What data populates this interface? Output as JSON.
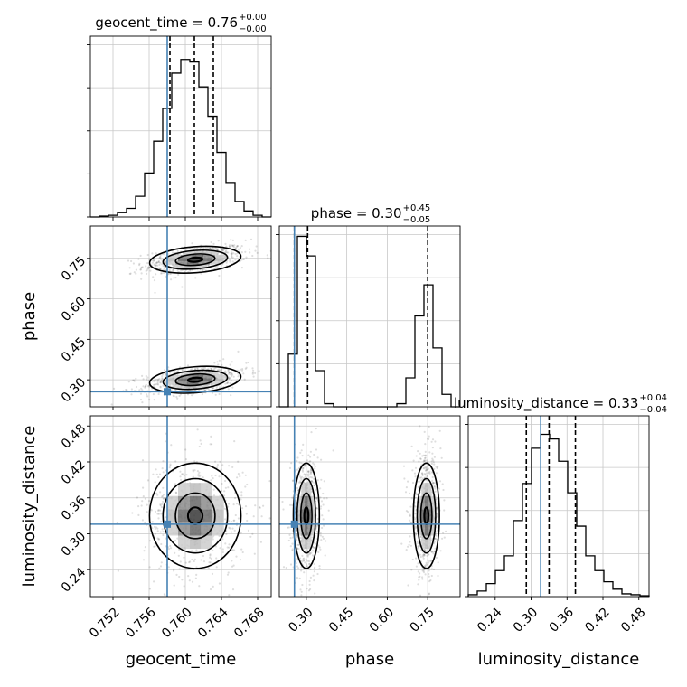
{
  "chart_data": {
    "type": "corner",
    "parameters": [
      "geocent_time",
      "phase",
      "luminosity_distance"
    ],
    "truth": {
      "geocent_time": 0.758,
      "phase": 0.256,
      "luminosity_distance": 0.316
    },
    "colors": {
      "truth": "#4682b4",
      "hist": "#000000",
      "grid": "#c8c8c8",
      "quantile": "#000000"
    },
    "grid": true,
    "titles": [
      {
        "label": "geocent_time = 0.76",
        "sup": "+0.00",
        "sub": "−0.00"
      },
      {
        "label": "phase = 0.30",
        "sup": "+0.45",
        "sub": "−0.05"
      },
      {
        "label": "luminosity_distance = 0.33",
        "sup": "+0.04",
        "sub": "−0.04"
      }
    ],
    "axis_labels": {
      "geocent_time": "geocent_time",
      "phase": "phase",
      "luminosity_distance": "luminosity_distance"
    },
    "ranges": {
      "geocent_time": [
        0.7495,
        0.7695
      ],
      "phase": [
        0.2,
        0.87
      ],
      "luminosity_distance": [
        0.195,
        0.497
      ]
    },
    "ticks": {
      "geocent_time": [
        0.752,
        0.756,
        0.76,
        0.764,
        0.768
      ],
      "phase": [
        0.3,
        0.45,
        0.6,
        0.75
      ],
      "luminosity_distance": [
        0.24,
        0.3,
        0.36,
        0.42,
        0.48
      ]
    },
    "tick_labels": {
      "geocent_time": [
        "0.752",
        "0.756",
        "0.760",
        "0.764",
        "0.768"
      ],
      "phase": [
        "0.30",
        "0.45",
        "0.60",
        "0.75"
      ],
      "luminosity_distance": [
        "0.24",
        "0.30",
        "0.36",
        "0.42",
        "0.48"
      ]
    },
    "quantiles": {
      "geocent_time": [
        0.7583,
        0.761,
        0.7631
      ],
      "phase": [
        0.256,
        0.305,
        0.75
      ],
      "luminosity_distance": [
        0.292,
        0.33,
        0.374
      ]
    },
    "hist_1d": {
      "geocent_time": {
        "edges": [
          0.7495,
          0.7505,
          0.7515,
          0.7525,
          0.7535,
          0.7545,
          0.7555,
          0.7565,
          0.7575,
          0.7585,
          0.7595,
          0.7605,
          0.7615,
          0.7625,
          0.7635,
          0.7645,
          0.7655,
          0.7665,
          0.7675,
          0.7685,
          0.7695
        ],
        "counts": [
          0,
          1,
          2,
          5,
          10,
          24,
          51,
          88,
          126,
          167,
          183,
          180,
          151,
          117,
          75,
          40,
          18,
          7,
          2,
          0
        ],
        "ymax": 210
      },
      "phase": {
        "edges": [
          0.2,
          0.2335,
          0.267,
          0.3005,
          0.334,
          0.3675,
          0.401,
          0.4345,
          0.468,
          0.5015,
          0.535,
          0.5685,
          0.602,
          0.6355,
          0.669,
          0.7025,
          0.736,
          0.7695,
          0.803,
          0.8365,
          0.87
        ],
        "counts": [
          0,
          51,
          165,
          146,
          35,
          3,
          0,
          0,
          0,
          0,
          0,
          0,
          0,
          3,
          28,
          88,
          118,
          57,
          12,
          0
        ],
        "ymax": 175
      },
      "luminosity_distance": {
        "edges": [
          0.195,
          0.2101,
          0.2252,
          0.2403,
          0.2554,
          0.2705,
          0.2856,
          0.3007,
          0.3158,
          0.3309,
          0.346,
          0.3611,
          0.3762,
          0.3913,
          0.4064,
          0.4215,
          0.4366,
          0.4517,
          0.4668,
          0.4819,
          0.497
        ],
        "counts": [
          2,
          6,
          14,
          28,
          44,
          82,
          122,
          160,
          175,
          170,
          146,
          112,
          76,
          44,
          28,
          16,
          8,
          3,
          2,
          1
        ],
        "ymax": 195
      }
    },
    "modes_2d": [
      {
        "geocent_time": 0.7611,
        "phase": 0.745,
        "luminosity_distance": 0.33,
        "s_geocent_time": 0.0023,
        "s_phase": 0.022,
        "s_luminosity_distance": 0.04
      },
      {
        "geocent_time": 0.7611,
        "phase": 0.3,
        "luminosity_distance": 0.33,
        "s_geocent_time": 0.0023,
        "s_phase": 0.022,
        "s_luminosity_distance": 0.04
      }
    ]
  }
}
